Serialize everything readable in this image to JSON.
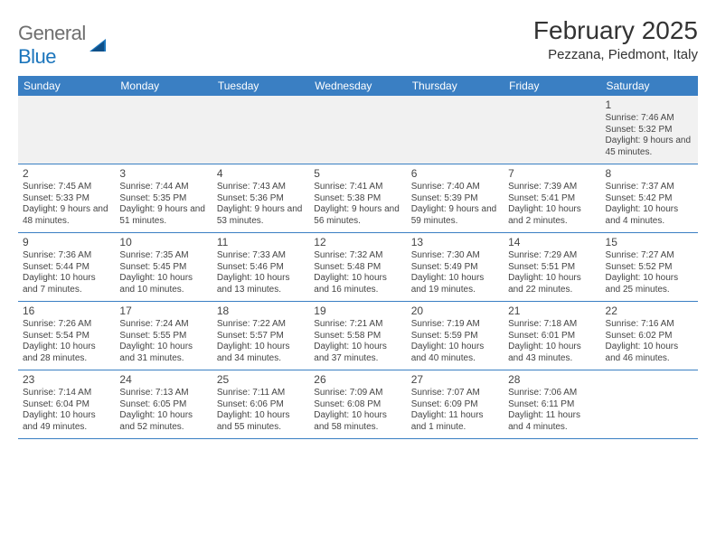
{
  "brand": {
    "name_part1": "General",
    "name_part2": "Blue"
  },
  "title": "February 2025",
  "location": "Pezzana, Piedmont, Italy",
  "colors": {
    "header_bg": "#3a7fc3",
    "header_text": "#ffffff",
    "row_alt_bg": "#f1f1f1",
    "border": "#3a7fc3",
    "text": "#333333",
    "brand_gray": "#6f6f6f",
    "brand_blue": "#1b75bc"
  },
  "day_headers": [
    "Sunday",
    "Monday",
    "Tuesday",
    "Wednesday",
    "Thursday",
    "Friday",
    "Saturday"
  ],
  "weeks": [
    [
      null,
      null,
      null,
      null,
      null,
      null,
      {
        "n": "1",
        "sr": "Sunrise: 7:46 AM",
        "ss": "Sunset: 5:32 PM",
        "dl": "Daylight: 9 hours and 45 minutes."
      }
    ],
    [
      {
        "n": "2",
        "sr": "Sunrise: 7:45 AM",
        "ss": "Sunset: 5:33 PM",
        "dl": "Daylight: 9 hours and 48 minutes."
      },
      {
        "n": "3",
        "sr": "Sunrise: 7:44 AM",
        "ss": "Sunset: 5:35 PM",
        "dl": "Daylight: 9 hours and 51 minutes."
      },
      {
        "n": "4",
        "sr": "Sunrise: 7:43 AM",
        "ss": "Sunset: 5:36 PM",
        "dl": "Daylight: 9 hours and 53 minutes."
      },
      {
        "n": "5",
        "sr": "Sunrise: 7:41 AM",
        "ss": "Sunset: 5:38 PM",
        "dl": "Daylight: 9 hours and 56 minutes."
      },
      {
        "n": "6",
        "sr": "Sunrise: 7:40 AM",
        "ss": "Sunset: 5:39 PM",
        "dl": "Daylight: 9 hours and 59 minutes."
      },
      {
        "n": "7",
        "sr": "Sunrise: 7:39 AM",
        "ss": "Sunset: 5:41 PM",
        "dl": "Daylight: 10 hours and 2 minutes."
      },
      {
        "n": "8",
        "sr": "Sunrise: 7:37 AM",
        "ss": "Sunset: 5:42 PM",
        "dl": "Daylight: 10 hours and 4 minutes."
      }
    ],
    [
      {
        "n": "9",
        "sr": "Sunrise: 7:36 AM",
        "ss": "Sunset: 5:44 PM",
        "dl": "Daylight: 10 hours and 7 minutes."
      },
      {
        "n": "10",
        "sr": "Sunrise: 7:35 AM",
        "ss": "Sunset: 5:45 PM",
        "dl": "Daylight: 10 hours and 10 minutes."
      },
      {
        "n": "11",
        "sr": "Sunrise: 7:33 AM",
        "ss": "Sunset: 5:46 PM",
        "dl": "Daylight: 10 hours and 13 minutes."
      },
      {
        "n": "12",
        "sr": "Sunrise: 7:32 AM",
        "ss": "Sunset: 5:48 PM",
        "dl": "Daylight: 10 hours and 16 minutes."
      },
      {
        "n": "13",
        "sr": "Sunrise: 7:30 AM",
        "ss": "Sunset: 5:49 PM",
        "dl": "Daylight: 10 hours and 19 minutes."
      },
      {
        "n": "14",
        "sr": "Sunrise: 7:29 AM",
        "ss": "Sunset: 5:51 PM",
        "dl": "Daylight: 10 hours and 22 minutes."
      },
      {
        "n": "15",
        "sr": "Sunrise: 7:27 AM",
        "ss": "Sunset: 5:52 PM",
        "dl": "Daylight: 10 hours and 25 minutes."
      }
    ],
    [
      {
        "n": "16",
        "sr": "Sunrise: 7:26 AM",
        "ss": "Sunset: 5:54 PM",
        "dl": "Daylight: 10 hours and 28 minutes."
      },
      {
        "n": "17",
        "sr": "Sunrise: 7:24 AM",
        "ss": "Sunset: 5:55 PM",
        "dl": "Daylight: 10 hours and 31 minutes."
      },
      {
        "n": "18",
        "sr": "Sunrise: 7:22 AM",
        "ss": "Sunset: 5:57 PM",
        "dl": "Daylight: 10 hours and 34 minutes."
      },
      {
        "n": "19",
        "sr": "Sunrise: 7:21 AM",
        "ss": "Sunset: 5:58 PM",
        "dl": "Daylight: 10 hours and 37 minutes."
      },
      {
        "n": "20",
        "sr": "Sunrise: 7:19 AM",
        "ss": "Sunset: 5:59 PM",
        "dl": "Daylight: 10 hours and 40 minutes."
      },
      {
        "n": "21",
        "sr": "Sunrise: 7:18 AM",
        "ss": "Sunset: 6:01 PM",
        "dl": "Daylight: 10 hours and 43 minutes."
      },
      {
        "n": "22",
        "sr": "Sunrise: 7:16 AM",
        "ss": "Sunset: 6:02 PM",
        "dl": "Daylight: 10 hours and 46 minutes."
      }
    ],
    [
      {
        "n": "23",
        "sr": "Sunrise: 7:14 AM",
        "ss": "Sunset: 6:04 PM",
        "dl": "Daylight: 10 hours and 49 minutes."
      },
      {
        "n": "24",
        "sr": "Sunrise: 7:13 AM",
        "ss": "Sunset: 6:05 PM",
        "dl": "Daylight: 10 hours and 52 minutes."
      },
      {
        "n": "25",
        "sr": "Sunrise: 7:11 AM",
        "ss": "Sunset: 6:06 PM",
        "dl": "Daylight: 10 hours and 55 minutes."
      },
      {
        "n": "26",
        "sr": "Sunrise: 7:09 AM",
        "ss": "Sunset: 6:08 PM",
        "dl": "Daylight: 10 hours and 58 minutes."
      },
      {
        "n": "27",
        "sr": "Sunrise: 7:07 AM",
        "ss": "Sunset: 6:09 PM",
        "dl": "Daylight: 11 hours and 1 minute."
      },
      {
        "n": "28",
        "sr": "Sunrise: 7:06 AM",
        "ss": "Sunset: 6:11 PM",
        "dl": "Daylight: 11 hours and 4 minutes."
      },
      null
    ]
  ]
}
